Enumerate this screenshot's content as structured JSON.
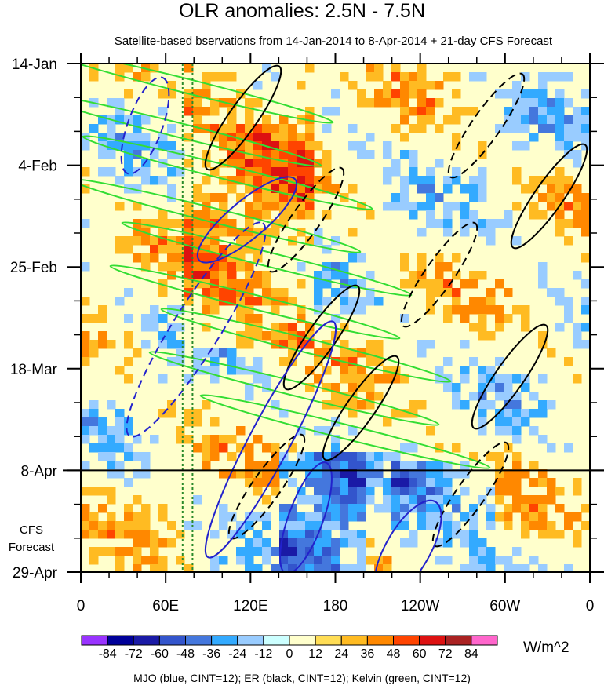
{
  "chart_data": {
    "type": "heatmap",
    "title": "OLR anomalies: 2.5N - 7.5N",
    "subtitle": "Satellite-based bservations from 14-Jan-2014 to 8-Apr-2014 + 21-day CFS Forecast",
    "x_ticks": [
      "0",
      "60E",
      "120E",
      "180",
      "120W",
      "60W",
      "0"
    ],
    "x_tick_lon": [
      0,
      60,
      120,
      180,
      240,
      300,
      360
    ],
    "y_ticks": [
      "14-Jan",
      "4-Feb",
      "25-Feb",
      "18-Mar",
      "8-Apr",
      "29-Apr"
    ],
    "y_tick_day": [
      0,
      21,
      42,
      63,
      84,
      105
    ],
    "forecast_start_label": "8-Apr",
    "forecast_label_lines": [
      "CFS",
      "Forecast"
    ],
    "colorbar": {
      "labels": [
        "-84",
        "-72",
        "-60",
        "-48",
        "-36",
        "-24",
        "-12",
        "0",
        "12",
        "24",
        "36",
        "48",
        "60",
        "72",
        "84"
      ],
      "colors": [
        "#9933ff",
        "#000099",
        "#1a1aa6",
        "#3355cc",
        "#4477dd",
        "#33aaff",
        "#99ccff",
        "#ccffff",
        "#ffffcc",
        "#ffdd55",
        "#ffbb22",
        "#ff8800",
        "#ff4400",
        "#dd1111",
        "#aa2222",
        "#ff66cc"
      ],
      "units": "W/m^2"
    },
    "contour_colors": {
      "mjo": "#2222cc",
      "er": "#000000",
      "kelvin": "#33dd33"
    },
    "footer": "MJO (blue, CINT=12); ER (black, CINT=12); Kelvin (green, CINT=12)"
  }
}
